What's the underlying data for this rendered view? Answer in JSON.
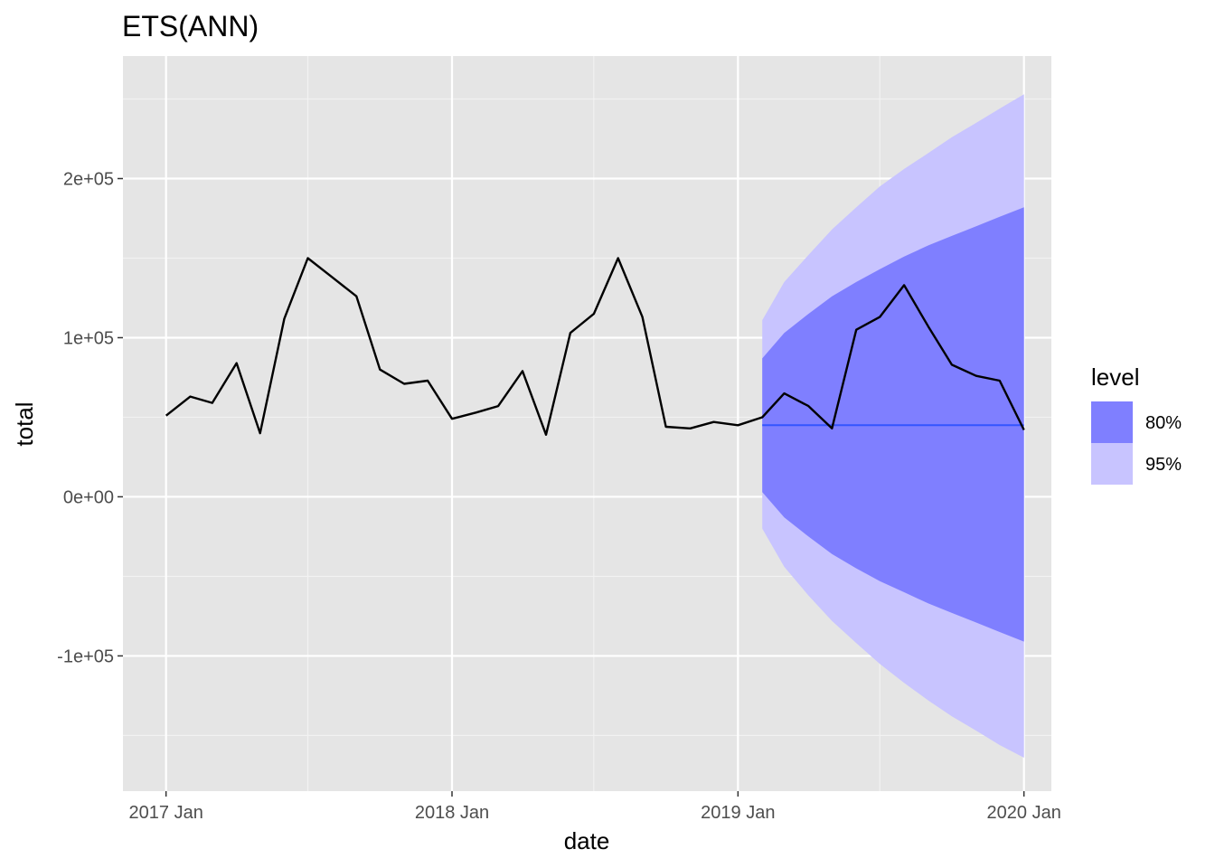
{
  "chart_data": {
    "type": "line",
    "title": "ETS(ANN)",
    "xlabel": "date",
    "ylabel": "total",
    "x_ticks": [
      "2017 Jan",
      "2018 Jan",
      "2019 Jan",
      "2020 Jan"
    ],
    "y_ticks": [
      "-1e+05",
      "0e+00",
      "1e+05",
      "2e+05"
    ],
    "y_tick_values": [
      -100000,
      0,
      100000,
      200000
    ],
    "xlim": [
      "2016-11-07",
      "2020-02-05"
    ],
    "ylim": [
      -185000,
      277000
    ],
    "grid": true,
    "background": "#e5e5e5",
    "series": [
      {
        "role": "actual",
        "color": "#000000",
        "x": [
          "2017-01",
          "2017-02",
          "2017-03",
          "2017-04",
          "2017-05",
          "2017-06",
          "2017-07",
          "2017-08",
          "2017-09",
          "2017-10",
          "2017-11",
          "2017-12",
          "2018-01",
          "2018-02",
          "2018-03",
          "2018-04",
          "2018-05",
          "2018-06",
          "2018-07",
          "2018-08",
          "2018-09",
          "2018-10",
          "2018-11",
          "2018-12",
          "2019-01",
          "2019-02",
          "2019-03",
          "2019-04",
          "2019-05",
          "2019-06",
          "2019-07",
          "2019-08",
          "2019-09",
          "2019-10",
          "2019-11",
          "2019-12",
          "2020-01"
        ],
        "values": [
          51000,
          63000,
          59000,
          84000,
          40000,
          112000,
          150000,
          138000,
          126000,
          80000,
          71000,
          73000,
          49000,
          53000,
          57000,
          79000,
          39000,
          103000,
          115000,
          150000,
          113000,
          44000,
          43000,
          47000,
          45000,
          50000,
          65000,
          57000,
          43000,
          105000,
          113000,
          133000,
          107000,
          83000,
          76000,
          73000,
          42000
        ]
      },
      {
        "role": "forecast",
        "color": "#3355ff",
        "x": [
          "2019-02",
          "2020-01"
        ],
        "values": [
          45000,
          45000
        ]
      }
    ],
    "intervals": {
      "x": [
        "2019-02",
        "2019-03",
        "2019-04",
        "2019-05",
        "2019-06",
        "2019-07",
        "2019-08",
        "2019-09",
        "2019-10",
        "2019-11",
        "2019-12",
        "2020-01"
      ],
      "level80": {
        "color": "#7f7fff",
        "lower": [
          3000,
          -13000,
          -25000,
          -36000,
          -45000,
          -53000,
          -60000,
          -67000,
          -73000,
          -79000,
          -85000,
          -91000
        ],
        "upper": [
          87000,
          103000,
          115000,
          126000,
          135000,
          143000,
          151000,
          158000,
          164000,
          170000,
          176000,
          182000
        ]
      },
      "level95": {
        "color": "#c8c4ff",
        "lower": [
          -20000,
          -44000,
          -62000,
          -78000,
          -92000,
          -105000,
          -117000,
          -128000,
          -138000,
          -147000,
          -156000,
          -164000
        ],
        "upper": [
          111000,
          135000,
          152000,
          168000,
          182000,
          195000,
          206000,
          216000,
          226000,
          235000,
          244000,
          253000
        ]
      }
    },
    "legend": {
      "title": "level",
      "position": "right",
      "entries": [
        {
          "label": "80%",
          "color": "#7f7fff"
        },
        {
          "label": "95%",
          "color": "#c8c4ff"
        }
      ]
    }
  }
}
